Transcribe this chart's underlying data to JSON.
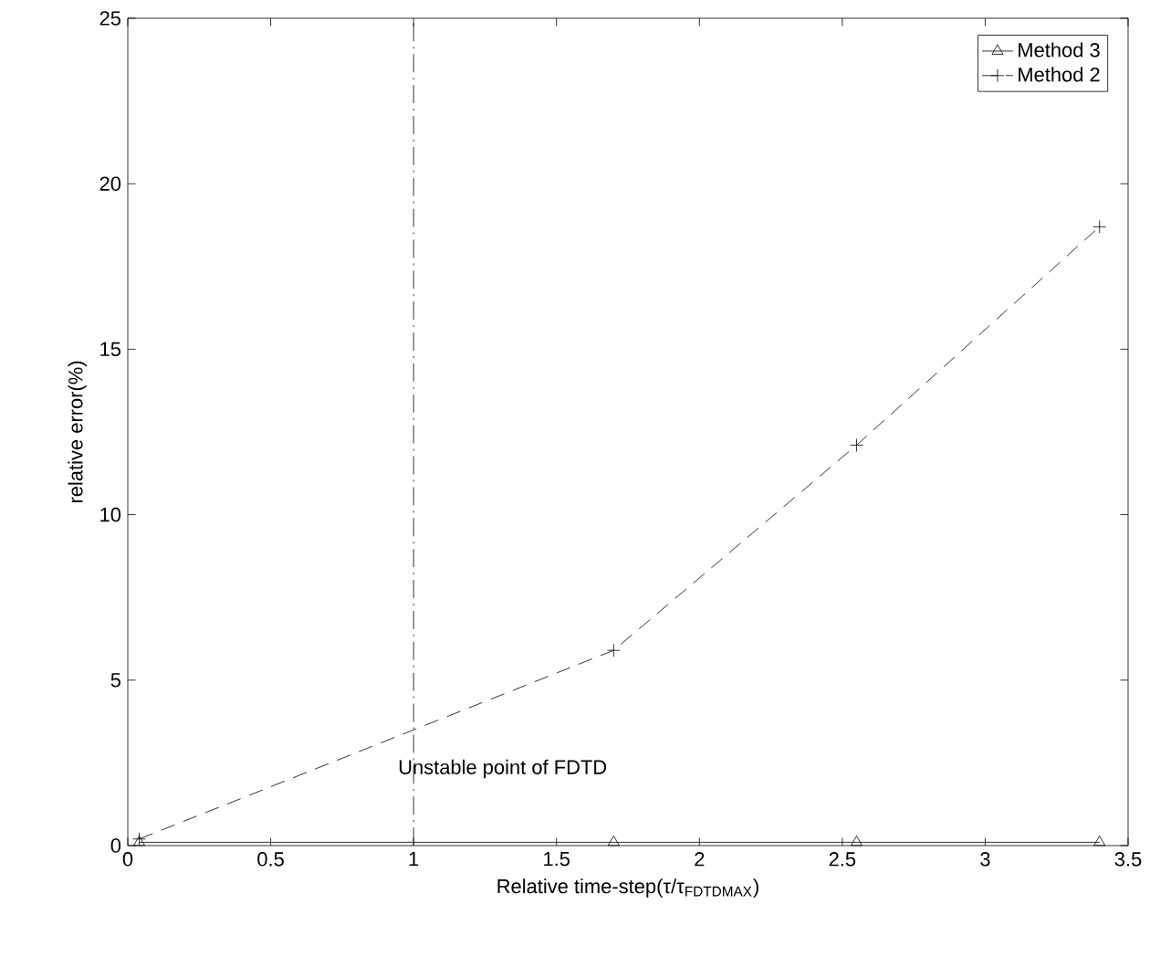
{
  "chart_data": {
    "type": "line",
    "xlabel": "Relative time-step(τ/τ$_{FDTDMAX}$)",
    "ylabel": "relative error(%)",
    "xlim": [
      0,
      3.5
    ],
    "xticks": [
      0,
      0.5,
      1,
      1.5,
      2,
      2.5,
      3,
      3.5
    ],
    "ylim": [
      0,
      25
    ],
    "yticks": [
      0,
      5,
      10,
      15,
      20,
      25
    ],
    "legend": "top right",
    "grid": false,
    "series": [
      {
        "name": "Method 3",
        "color": "#000000",
        "marker": "triangle",
        "line_style": "solid",
        "x": [
          0.04,
          1.7,
          2.55,
          3.4
        ],
        "values": [
          0.1,
          0.1,
          0.1,
          0.1
        ]
      },
      {
        "name": "Method 2",
        "color": "#000000",
        "marker": "cross",
        "line_style": "dashed",
        "x": [
          0.04,
          1.7,
          2.55,
          3.4
        ],
        "values": [
          0.2,
          5.9,
          12.1,
          18.7
        ]
      }
    ],
    "ref_lines": [
      {
        "axis": "x",
        "value": 1,
        "line_style": "dashdotted",
        "label": "Unstable point of FDTD"
      }
    ]
  }
}
